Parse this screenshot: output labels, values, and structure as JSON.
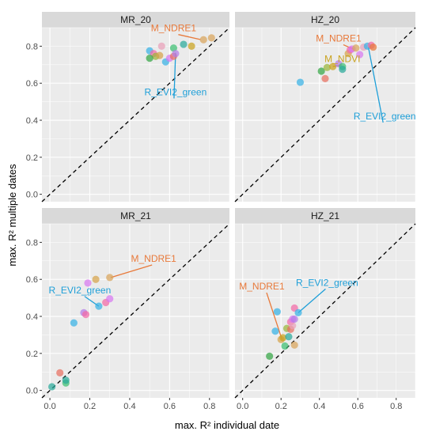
{
  "chart_data": {
    "type": "scatter",
    "xlabel": "max. R² individual date",
    "ylabel": "max. R² multiple dates",
    "xlim": [
      -0.04,
      0.9
    ],
    "ylim": [
      -0.04,
      0.9
    ],
    "x_ticks": [
      "0.0",
      "0.2",
      "0.4",
      "0.6",
      "0.8"
    ],
    "y_ticks": [
      "0.0",
      "0.2",
      "0.4",
      "0.6",
      "0.8"
    ],
    "reference_line": "y = x (dashed)",
    "grid": true,
    "panels": [
      {
        "title": "MR_20",
        "points": [
          {
            "x": 0.5,
            "y": 0.775,
            "color": "#38b2e5"
          },
          {
            "x": 0.52,
            "y": 0.76,
            "color": "#f26aa6"
          },
          {
            "x": 0.53,
            "y": 0.745,
            "color": "#9ab63a"
          },
          {
            "x": 0.55,
            "y": 0.75,
            "color": "#d6a24a"
          },
          {
            "x": 0.58,
            "y": 0.715,
            "color": "#38b2e5"
          },
          {
            "x": 0.6,
            "y": 0.735,
            "color": "#d777f0"
          },
          {
            "x": 0.62,
            "y": 0.745,
            "color": "#e86f5f"
          },
          {
            "x": 0.62,
            "y": 0.79,
            "color": "#3bbf72"
          },
          {
            "x": 0.63,
            "y": 0.76,
            "color": "#b37ce8"
          },
          {
            "x": 0.67,
            "y": 0.81,
            "color": "#2aa99a"
          },
          {
            "x": 0.71,
            "y": 0.8,
            "color": "#c9a21e"
          },
          {
            "x": 0.77,
            "y": 0.835,
            "color": "#d8a35a"
          },
          {
            "x": 0.81,
            "y": 0.845,
            "color": "#d8a35a"
          },
          {
            "x": 0.5,
            "y": 0.735,
            "color": "#33a544"
          },
          {
            "x": 0.56,
            "y": 0.8,
            "color": "#e9a0b8"
          }
        ],
        "annotations": [
          {
            "text": "M_NDRE1",
            "color": "#e8793a",
            "x": 0.62,
            "y": 0.88,
            "px": 0.755,
            "py": 0.836
          },
          {
            "text": "R_EVI2_green",
            "color": "#1e9fd8",
            "x": 0.63,
            "y": 0.535,
            "px": 0.63,
            "py": 0.765
          }
        ]
      },
      {
        "title": "HZ_20",
        "points": [
          {
            "x": 0.3,
            "y": 0.605,
            "color": "#38b2e5"
          },
          {
            "x": 0.41,
            "y": 0.665,
            "color": "#33a544"
          },
          {
            "x": 0.43,
            "y": 0.625,
            "color": "#e86f5f"
          },
          {
            "x": 0.44,
            "y": 0.685,
            "color": "#9ab63a"
          },
          {
            "x": 0.47,
            "y": 0.69,
            "color": "#c9a21e"
          },
          {
            "x": 0.5,
            "y": 0.705,
            "color": "#b37ce8"
          },
          {
            "x": 0.52,
            "y": 0.69,
            "color": "#3bbf72"
          },
          {
            "x": 0.55,
            "y": 0.76,
            "color": "#d6a24a"
          },
          {
            "x": 0.56,
            "y": 0.78,
            "color": "#f26aa6"
          },
          {
            "x": 0.57,
            "y": 0.785,
            "color": "#d777f0"
          },
          {
            "x": 0.59,
            "y": 0.79,
            "color": "#d8a35a"
          },
          {
            "x": 0.61,
            "y": 0.755,
            "color": "#d777f0"
          },
          {
            "x": 0.63,
            "y": 0.795,
            "color": "#e9a0b8"
          },
          {
            "x": 0.65,
            "y": 0.8,
            "color": "#38b2e5"
          },
          {
            "x": 0.67,
            "y": 0.805,
            "color": "#f26aa6"
          },
          {
            "x": 0.68,
            "y": 0.795,
            "color": "#e8793a"
          },
          {
            "x": 0.52,
            "y": 0.675,
            "color": "#2aa99a"
          }
        ],
        "annotations": [
          {
            "text": "M_NDRE1",
            "color": "#e8793a",
            "x": 0.5,
            "y": 0.825,
            "px": 0.575,
            "py": 0.785
          },
          {
            "text": "M_NDVI",
            "color": "#c9a21e",
            "x": 0.52,
            "y": 0.715,
            "px": 0.47,
            "py": 0.69
          },
          {
            "text": "R_EVI2_green",
            "color": "#1e9fd8",
            "x": 0.74,
            "y": 0.405,
            "px": 0.655,
            "py": 0.795
          }
        ]
      },
      {
        "title": "MR_21",
        "points": [
          {
            "x": 0.01,
            "y": 0.02,
            "color": "#2aa99a"
          },
          {
            "x": 0.05,
            "y": 0.095,
            "color": "#e86f5f"
          },
          {
            "x": 0.08,
            "y": 0.04,
            "color": "#3bbf72"
          },
          {
            "x": 0.08,
            "y": 0.055,
            "color": "#2aa99a"
          },
          {
            "x": 0.12,
            "y": 0.365,
            "color": "#38b2e5"
          },
          {
            "x": 0.17,
            "y": 0.42,
            "color": "#b37ce8"
          },
          {
            "x": 0.18,
            "y": 0.41,
            "color": "#f26aa6"
          },
          {
            "x": 0.19,
            "y": 0.58,
            "color": "#d777f0"
          },
          {
            "x": 0.23,
            "y": 0.6,
            "color": "#d6a24a"
          },
          {
            "x": 0.245,
            "y": 0.455,
            "color": "#38b2e5"
          },
          {
            "x": 0.28,
            "y": 0.475,
            "color": "#f26aa6"
          },
          {
            "x": 0.3,
            "y": 0.495,
            "color": "#d777f0"
          },
          {
            "x": 0.3,
            "y": 0.61,
            "color": "#d8a35a"
          }
        ],
        "annotations": [
          {
            "text": "M_NDRE1",
            "color": "#e8793a",
            "x": 0.52,
            "y": 0.695,
            "px": 0.305,
            "py": 0.61
          },
          {
            "text": "R_EVI2_green",
            "color": "#1e9fd8",
            "x": 0.15,
            "y": 0.525,
            "px": 0.245,
            "py": 0.455
          }
        ]
      },
      {
        "title": "HZ_21",
        "points": [
          {
            "x": 0.14,
            "y": 0.185,
            "color": "#33a544"
          },
          {
            "x": 0.17,
            "y": 0.32,
            "color": "#38b2e5"
          },
          {
            "x": 0.18,
            "y": 0.425,
            "color": "#38b2e5"
          },
          {
            "x": 0.2,
            "y": 0.275,
            "color": "#d6a24a"
          },
          {
            "x": 0.21,
            "y": 0.285,
            "color": "#c9a21e"
          },
          {
            "x": 0.22,
            "y": 0.24,
            "color": "#3bbf72"
          },
          {
            "x": 0.23,
            "y": 0.335,
            "color": "#9ab63a"
          },
          {
            "x": 0.24,
            "y": 0.29,
            "color": "#2aa99a"
          },
          {
            "x": 0.25,
            "y": 0.33,
            "color": "#e86f5f"
          },
          {
            "x": 0.25,
            "y": 0.37,
            "color": "#f26aa6"
          },
          {
            "x": 0.26,
            "y": 0.35,
            "color": "#e9a0b8"
          },
          {
            "x": 0.26,
            "y": 0.385,
            "color": "#d777f0"
          },
          {
            "x": 0.27,
            "y": 0.385,
            "color": "#b37ce8"
          },
          {
            "x": 0.27,
            "y": 0.445,
            "color": "#f26aa6"
          },
          {
            "x": 0.27,
            "y": 0.245,
            "color": "#d8a35a"
          },
          {
            "x": 0.29,
            "y": 0.42,
            "color": "#38b2e5"
          }
        ],
        "annotations": [
          {
            "text": "M_NDRE1",
            "color": "#e8793a",
            "x": 0.1,
            "y": 0.545,
            "px": 0.205,
            "py": 0.275
          },
          {
            "text": "R_EVI2_green",
            "color": "#1e9fd8",
            "x": 0.44,
            "y": 0.565,
            "px": 0.29,
            "py": 0.42
          }
        ]
      }
    ]
  }
}
